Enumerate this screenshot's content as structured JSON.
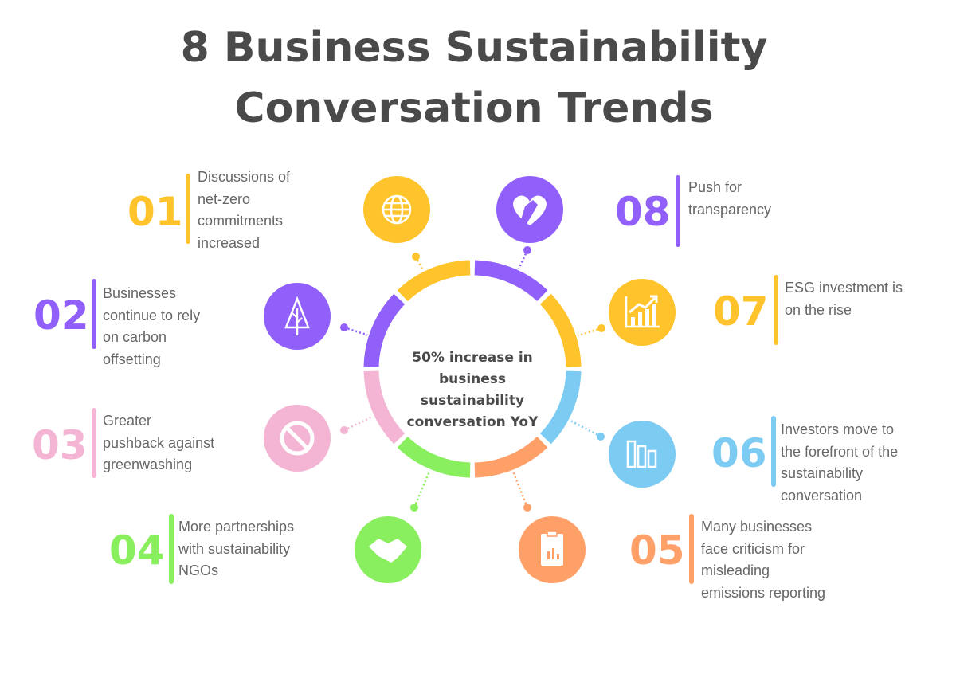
{
  "title_line1": "8 Business Sustainability",
  "title_line2": "Conversation Trends",
  "center_text": "50% increase in business sustainability conversation YoY",
  "colors": {
    "yellow": "#FFC42C",
    "purple": "#9160FA",
    "pink": "#F3B5D3",
    "green": "#8AEF5F",
    "orange": "#FFA068",
    "blue": "#7CCBF2",
    "text": "#555555"
  },
  "trends": [
    {
      "number": "01",
      "lines": [
        "Discussions of",
        "net-zero",
        "commitments",
        "increased"
      ],
      "color": "#FFC42C",
      "icon": "globe-icon"
    },
    {
      "number": "02",
      "lines": [
        "Businesses",
        "continue to rely",
        "on carbon",
        "offsetting"
      ],
      "color": "#9160FA",
      "icon": "tree-icon"
    },
    {
      "number": "03",
      "lines": [
        "Greater",
        "pushback against",
        "greenwashing"
      ],
      "color": "#F3B5D3",
      "icon": "prohibited-icon"
    },
    {
      "number": "04",
      "lines": [
        "More partnerships",
        "with sustainability",
        "NGOs"
      ],
      "color": "#8AEF5F",
      "icon": "handshake-icon"
    },
    {
      "number": "05",
      "lines": [
        "Many businesses",
        "face criticism for",
        "misleading",
        "emissions reporting"
      ],
      "color": "#FFA068",
      "icon": "clipboard-report-icon"
    },
    {
      "number": "06",
      "lines": [
        "Investors move to",
        "the forefront of the",
        "sustainability",
        "conversation"
      ],
      "color": "#7CCBF2",
      "icon": "bar-chart-icon"
    },
    {
      "number": "07",
      "lines": [
        "ESG investment is",
        "on the rise"
      ],
      "color": "#FFC42C",
      "icon": "growth-chart-icon"
    },
    {
      "number": "08",
      "lines": [
        "Push for",
        "transparency"
      ],
      "color": "#9160FA",
      "icon": "heart-hand-icon"
    }
  ]
}
